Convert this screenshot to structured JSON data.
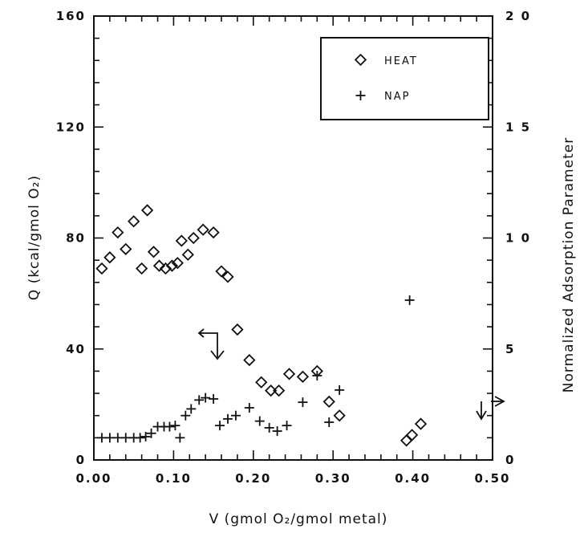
{
  "chart_data": {
    "type": "scatter",
    "xlabel": "V (gmol O₂/gmol  metal)",
    "ylabel": "Q  (kcal/gmol   O₂)",
    "y2label": "Normalized  Adsorption  Parameter",
    "xlim": [
      0,
      0.5
    ],
    "ylim": [
      0,
      160
    ],
    "y2lim": [
      0,
      20
    ],
    "x_ticks": [
      "0.00",
      "0.10",
      "0.20",
      "0.30",
      "0.40",
      "0.50"
    ],
    "y_ticks": [
      "0",
      "40",
      "80",
      "120",
      "160"
    ],
    "y2_ticks": [
      "0",
      "5",
      "1 0",
      "1 5",
      "2 0"
    ],
    "legend_position": "top-right",
    "grid": false,
    "series": [
      {
        "name": "HEAT",
        "marker": "diamond",
        "axis": "left",
        "points": [
          [
            0.01,
            69
          ],
          [
            0.02,
            73
          ],
          [
            0.03,
            82
          ],
          [
            0.04,
            76
          ],
          [
            0.05,
            86
          ],
          [
            0.06,
            69
          ],
          [
            0.067,
            90
          ],
          [
            0.075,
            75
          ],
          [
            0.082,
            70
          ],
          [
            0.09,
            69
          ],
          [
            0.098,
            70
          ],
          [
            0.105,
            71
          ],
          [
            0.11,
            79
          ],
          [
            0.118,
            74
          ],
          [
            0.125,
            80
          ],
          [
            0.137,
            83
          ],
          [
            0.15,
            82
          ],
          [
            0.16,
            68
          ],
          [
            0.168,
            66
          ],
          [
            0.18,
            47
          ],
          [
            0.195,
            36
          ],
          [
            0.21,
            28
          ],
          [
            0.222,
            25
          ],
          [
            0.232,
            25
          ],
          [
            0.245,
            31
          ],
          [
            0.262,
            30
          ],
          [
            0.28,
            32
          ],
          [
            0.295,
            21
          ],
          [
            0.308,
            16
          ],
          [
            0.392,
            7
          ],
          [
            0.399,
            9
          ],
          [
            0.41,
            13
          ]
        ]
      },
      {
        "name": "NAP",
        "marker": "plus",
        "axis": "right",
        "points": [
          [
            0.01,
            1.0
          ],
          [
            0.02,
            1.0
          ],
          [
            0.03,
            1.0
          ],
          [
            0.04,
            1.0
          ],
          [
            0.05,
            1.0
          ],
          [
            0.058,
            1.0
          ],
          [
            0.065,
            1.05
          ],
          [
            0.072,
            1.2
          ],
          [
            0.08,
            1.5
          ],
          [
            0.088,
            1.5
          ],
          [
            0.095,
            1.5
          ],
          [
            0.102,
            1.55
          ],
          [
            0.108,
            1.0
          ],
          [
            0.115,
            2.0
          ],
          [
            0.122,
            2.3
          ],
          [
            0.132,
            2.7
          ],
          [
            0.14,
            2.8
          ],
          [
            0.15,
            2.75
          ],
          [
            0.158,
            1.55
          ],
          [
            0.168,
            1.85
          ],
          [
            0.178,
            2.0
          ],
          [
            0.195,
            2.35
          ],
          [
            0.208,
            1.75
          ],
          [
            0.22,
            1.45
          ],
          [
            0.23,
            1.3
          ],
          [
            0.242,
            1.55
          ],
          [
            0.262,
            2.6
          ],
          [
            0.28,
            3.8
          ],
          [
            0.295,
            1.7
          ],
          [
            0.308,
            3.15
          ],
          [
            0.396,
            7.2
          ]
        ]
      }
    ],
    "annotations": [
      {
        "type": "arrow",
        "points_to": "left-axis",
        "near": [
          0.133,
          46
        ]
      },
      {
        "type": "arrow",
        "points_to": "right-axis",
        "near": [
          0.487,
          5
        ]
      }
    ]
  }
}
